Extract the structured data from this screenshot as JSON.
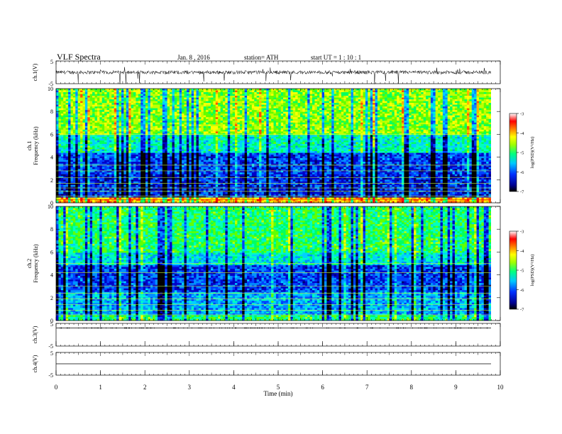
{
  "header": {
    "title": "VLF  Spectra",
    "date": "Jan.  8  , 2016",
    "station": "station= ATH",
    "start": "start  UT  =   1  : 10 : 1"
  },
  "chart_data": [
    {
      "type": "line",
      "name": "ch1-waveform",
      "ylabel": "ch.1(V)",
      "ylim": [
        -5,
        5
      ],
      "yticks": [
        "5",
        "-5"
      ],
      "xlim": [
        0,
        10
      ],
      "baseline": 0,
      "note_values": "noisy waveform around 0 V with occasional spikes to about -5 V"
    },
    {
      "type": "heatmap",
      "name": "ch1-spectrogram",
      "ylabel": "ch.1\nFrequency  (kHz)",
      "ylim": [
        0,
        10
      ],
      "yticks": [
        "0",
        "2",
        "4",
        "6",
        "8",
        "10"
      ],
      "xlim": [
        0,
        10
      ],
      "colorbar": {
        "label": "log(PSD)(V²/Hz)",
        "range": [
          -7,
          -3
        ],
        "ticks": [
          "-3",
          "-4",
          "-5",
          "-6",
          "-7"
        ]
      }
    },
    {
      "type": "heatmap",
      "name": "ch2-spectrogram",
      "ylabel": "ch.2\nFrequency  (kHz)",
      "ylim": [
        0,
        10
      ],
      "yticks": [
        "0",
        "2",
        "4",
        "6",
        "8",
        "10"
      ],
      "xlim": [
        0,
        10
      ],
      "colorbar": {
        "label": "log(PSD)(V²/Hz)",
        "range": [
          -7,
          -3
        ],
        "ticks": [
          "-3",
          "-4",
          "-5",
          "-6",
          "-7"
        ]
      }
    },
    {
      "type": "line",
      "name": "ch3-waveform",
      "ylabel": "ch.3(V)",
      "ylim": [
        -5,
        5
      ],
      "yticks": [
        "5",
        "-5"
      ],
      "xlim": [
        0,
        10
      ],
      "baseline": 3
    },
    {
      "type": "line",
      "name": "ch4-waveform",
      "ylabel": "ch.4(V)",
      "ylim": [
        -5,
        5
      ],
      "yticks": [
        "5",
        "-5"
      ],
      "xlim": [
        0,
        10
      ],
      "baseline": 0
    }
  ],
  "xaxis": {
    "label": "Time  (min)",
    "ticks": [
      "0",
      "1",
      "2",
      "3",
      "4",
      "5",
      "6",
      "7",
      "8",
      "9",
      "10"
    ]
  }
}
